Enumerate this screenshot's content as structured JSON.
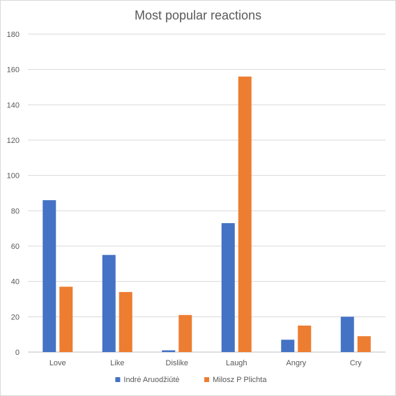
{
  "chart_data": {
    "type": "bar",
    "title": "Most popular reactions",
    "xlabel": "",
    "ylabel": "",
    "categories": [
      "Love",
      "Like",
      "Dislike",
      "Laugh",
      "Angry",
      "Cry"
    ],
    "series": [
      {
        "name": "Indrė Aruodžiūtė",
        "color": "#4472c4",
        "values": [
          86,
          55,
          1,
          73,
          7,
          20
        ]
      },
      {
        "name": "Milosz P Plichta",
        "color": "#ed7d31",
        "values": [
          37,
          34,
          21,
          156,
          15,
          9
        ]
      }
    ],
    "ylim": [
      0,
      180
    ],
    "yticks": [
      "0",
      "20",
      "40",
      "60",
      "80",
      "100",
      "120",
      "140",
      "160",
      "180"
    ],
    "grid": true,
    "legend": "bottom"
  }
}
